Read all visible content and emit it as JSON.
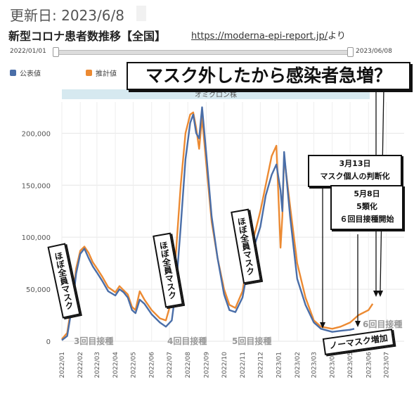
{
  "header": {
    "updated": "更新日: 2023/6/8",
    "heading": "新型コロナ患者数推移【全国】",
    "source_url": "https://moderna-epi-report.jp/",
    "source_suffix": "より"
  },
  "range": {
    "start": "2022/01/01",
    "end": "2023/06/08"
  },
  "annotations": {
    "headline": "マスク外したから感染者急増？",
    "mask_1": "ほぼ全員マスク",
    "mask_2": "ほぼ全員マスク",
    "mask_3": "ほぼ全員マスク",
    "march13_date": "3月13日",
    "march13_text": "マスク個人の判断化",
    "may8_date": "5月8日",
    "may8_line1": "5類化",
    "may8_line2": "６回目接種開始",
    "no_mask": "ノーマスク増加",
    "dose3": "3回目接種",
    "dose4": "4回目接種",
    "dose5": "5回目接種",
    "dose6": "6回目接種"
  },
  "chart_data": {
    "type": "line",
    "title": "",
    "band_label": "オミクロン株",
    "xlabel": "",
    "ylabel": "",
    "ylim": [
      0,
      230000
    ],
    "yticks": [
      0,
      50000,
      100000,
      150000,
      200000
    ],
    "ytick_labels": [
      "0",
      "50,000",
      "100,000",
      "150,000",
      "200,000"
    ],
    "xlim": [
      "2022-01-01",
      "2023-07-31"
    ],
    "xticks": [
      "2022/01",
      "2022/02",
      "2022/03",
      "2022/04",
      "2022/05",
      "2022/06",
      "2022/07",
      "2022/08",
      "2022/09",
      "2022/10",
      "2022/11",
      "2022/12",
      "2023/01",
      "2023/02",
      "2023/03",
      "2023/04",
      "2023/05",
      "2023/06",
      "2023/07"
    ],
    "grid": true,
    "legend_position": "top-left",
    "colors": {
      "official": "#4a6ea8",
      "estimated": "#ec8a32",
      "band": "#d6e9f0"
    },
    "series": [
      {
        "name": "公表値",
        "points": [
          [
            "2022-01-01",
            1000
          ],
          [
            "2022-01-10",
            5000
          ],
          [
            "2022-01-20",
            40000
          ],
          [
            "2022-01-25",
            65000
          ],
          [
            "2022-02-01",
            84000
          ],
          [
            "2022-02-08",
            89000
          ],
          [
            "2022-02-15",
            80000
          ],
          [
            "2022-02-22",
            72000
          ],
          [
            "2022-03-01",
            66000
          ],
          [
            "2022-03-10",
            58000
          ],
          [
            "2022-03-20",
            48000
          ],
          [
            "2022-04-01",
            44000
          ],
          [
            "2022-04-08",
            50000
          ],
          [
            "2022-04-15",
            47000
          ],
          [
            "2022-04-22",
            42000
          ],
          [
            "2022-04-29",
            30000
          ],
          [
            "2022-05-05",
            27000
          ],
          [
            "2022-05-12",
            40000
          ],
          [
            "2022-05-20",
            36000
          ],
          [
            "2022-06-01",
            26000
          ],
          [
            "2022-06-15",
            18000
          ],
          [
            "2022-06-25",
            14000
          ],
          [
            "2022-07-05",
            20000
          ],
          [
            "2022-07-12",
            50000
          ],
          [
            "2022-07-20",
            110000
          ],
          [
            "2022-07-28",
            175000
          ],
          [
            "2022-08-05",
            210000
          ],
          [
            "2022-08-10",
            218000
          ],
          [
            "2022-08-15",
            200000
          ],
          [
            "2022-08-20",
            195000
          ],
          [
            "2022-08-25",
            225000
          ],
          [
            "2022-09-01",
            180000
          ],
          [
            "2022-09-10",
            120000
          ],
          [
            "2022-09-20",
            80000
          ],
          [
            "2022-10-01",
            45000
          ],
          [
            "2022-10-10",
            30000
          ],
          [
            "2022-10-20",
            28000
          ],
          [
            "2022-11-01",
            42000
          ],
          [
            "2022-11-10",
            70000
          ],
          [
            "2022-11-20",
            90000
          ],
          [
            "2022-12-01",
            110000
          ],
          [
            "2022-12-10",
            140000
          ],
          [
            "2022-12-20",
            160000
          ],
          [
            "2022-12-28",
            170000
          ],
          [
            "2023-01-04",
            145000
          ],
          [
            "2023-01-07",
            125000
          ],
          [
            "2023-01-10",
            182000
          ],
          [
            "2023-01-20",
            120000
          ],
          [
            "2023-02-01",
            60000
          ],
          [
            "2023-02-15",
            35000
          ],
          [
            "2023-03-01",
            18000
          ],
          [
            "2023-03-13",
            12000
          ],
          [
            "2023-04-01",
            9000
          ],
          [
            "2023-04-15",
            10000
          ],
          [
            "2023-05-01",
            11000
          ],
          [
            "2023-05-08",
            12000
          ]
        ]
      },
      {
        "name": "推計値",
        "points": [
          [
            "2022-01-01",
            2000
          ],
          [
            "2022-01-10",
            8000
          ],
          [
            "2022-01-20",
            45000
          ],
          [
            "2022-01-25",
            70000
          ],
          [
            "2022-02-01",
            87000
          ],
          [
            "2022-02-08",
            91000
          ],
          [
            "2022-02-15",
            85000
          ],
          [
            "2022-02-22",
            76000
          ],
          [
            "2022-03-01",
            70000
          ],
          [
            "2022-03-10",
            62000
          ],
          [
            "2022-03-20",
            52000
          ],
          [
            "2022-04-01",
            47000
          ],
          [
            "2022-04-08",
            53000
          ],
          [
            "2022-04-15",
            49000
          ],
          [
            "2022-04-22",
            45000
          ],
          [
            "2022-04-29",
            33000
          ],
          [
            "2022-05-05",
            30000
          ],
          [
            "2022-05-12",
            48000
          ],
          [
            "2022-05-20",
            40000
          ],
          [
            "2022-06-01",
            30000
          ],
          [
            "2022-06-15",
            22000
          ],
          [
            "2022-06-25",
            20000
          ],
          [
            "2022-07-05",
            40000
          ],
          [
            "2022-07-12",
            85000
          ],
          [
            "2022-07-20",
            150000
          ],
          [
            "2022-07-28",
            200000
          ],
          [
            "2022-08-05",
            218000
          ],
          [
            "2022-08-10",
            220000
          ],
          [
            "2022-08-15",
            205000
          ],
          [
            "2022-08-20",
            185000
          ],
          [
            "2022-08-25",
            215000
          ],
          [
            "2022-09-01",
            170000
          ],
          [
            "2022-09-10",
            115000
          ],
          [
            "2022-09-20",
            80000
          ],
          [
            "2022-10-01",
            50000
          ],
          [
            "2022-10-10",
            35000
          ],
          [
            "2022-10-20",
            32000
          ],
          [
            "2022-11-01",
            48000
          ],
          [
            "2022-11-10",
            78000
          ],
          [
            "2022-11-20",
            100000
          ],
          [
            "2022-12-01",
            125000
          ],
          [
            "2022-12-10",
            150000
          ],
          [
            "2022-12-20",
            178000
          ],
          [
            "2022-12-28",
            188000
          ],
          [
            "2023-01-04",
            90000
          ],
          [
            "2023-01-07",
            120000
          ],
          [
            "2023-01-10",
            178000
          ],
          [
            "2023-01-20",
            130000
          ],
          [
            "2023-02-01",
            75000
          ],
          [
            "2023-02-15",
            42000
          ],
          [
            "2023-03-01",
            20000
          ],
          [
            "2023-03-13",
            14000
          ],
          [
            "2023-04-01",
            12000
          ],
          [
            "2023-04-15",
            14000
          ],
          [
            "2023-05-01",
            18000
          ],
          [
            "2023-05-15",
            25000
          ],
          [
            "2023-06-01",
            30000
          ],
          [
            "2023-06-08",
            36000
          ]
        ]
      }
    ]
  }
}
